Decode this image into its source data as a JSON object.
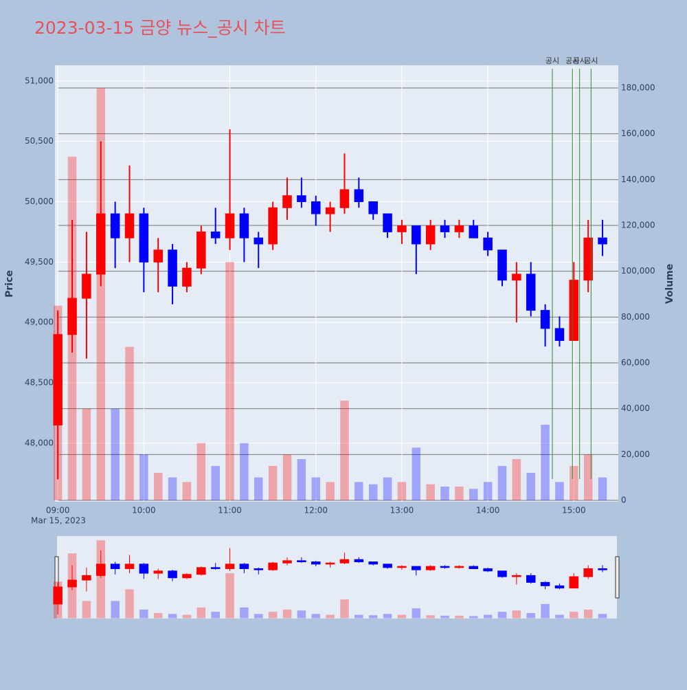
{
  "chart_data": {
    "type": "candlestick",
    "title": "2023-03-15 금양 뉴스_공시 차트",
    "y_label": "Price",
    "y2_label": "Volume",
    "x_date_label": "Mar 15, 2023",
    "x": [
      "09:00",
      "09:10",
      "09:20",
      "09:30",
      "09:40",
      "09:50",
      "10:00",
      "10:10",
      "10:20",
      "10:30",
      "10:40",
      "10:50",
      "11:00",
      "11:10",
      "11:20",
      "11:30",
      "11:40",
      "11:50",
      "12:00",
      "12:10",
      "12:20",
      "12:30",
      "12:40",
      "12:50",
      "13:00",
      "13:10",
      "13:20",
      "13:30",
      "13:40",
      "13:50",
      "14:00",
      "14:10",
      "14:20",
      "14:30",
      "14:40",
      "14:50",
      "15:00",
      "15:10",
      "15:20"
    ],
    "open": [
      48150,
      48900,
      49200,
      49400,
      49900,
      49700,
      49900,
      49500,
      49600,
      49300,
      49450,
      49750,
      49700,
      49900,
      49700,
      49650,
      49950,
      50050,
      50000,
      49900,
      49950,
      50100,
      50000,
      49900,
      49750,
      49800,
      49650,
      49800,
      49750,
      49800,
      49700,
      49600,
      49350,
      49400,
      49100,
      48950,
      48850,
      49350,
      49700
    ],
    "high": [
      49100,
      49850,
      49750,
      50500,
      50000,
      50300,
      49950,
      49700,
      49650,
      49500,
      49800,
      49950,
      50600,
      49950,
      49750,
      50000,
      50200,
      50200,
      50050,
      50000,
      50400,
      50200,
      50000,
      49900,
      49850,
      49800,
      49850,
      49850,
      49850,
      49850,
      49750,
      49600,
      49500,
      49500,
      49150,
      49050,
      49500,
      49850,
      49850
    ],
    "low": [
      47700,
      48750,
      48700,
      49300,
      49450,
      49500,
      49250,
      49250,
      49150,
      49250,
      49400,
      49650,
      49600,
      49500,
      49450,
      49600,
      49850,
      49950,
      49800,
      49750,
      49900,
      49950,
      49850,
      49700,
      49650,
      49400,
      49600,
      49700,
      49700,
      49700,
      49550,
      49300,
      49000,
      49050,
      48800,
      48800,
      48850,
      49250,
      49550
    ],
    "close": [
      48900,
      49200,
      49400,
      49900,
      49700,
      49900,
      49500,
      49600,
      49300,
      49450,
      49750,
      49700,
      49900,
      49700,
      49650,
      49950,
      50050,
      50000,
      49900,
      49950,
      50100,
      50000,
      49900,
      49750,
      49800,
      49650,
      49800,
      49750,
      49800,
      49700,
      49600,
      49350,
      49400,
      49100,
      48950,
      48850,
      49350,
      49700,
      49650
    ],
    "volume": [
      85000,
      150000,
      40000,
      180000,
      40000,
      67000,
      20000,
      12000,
      10000,
      8000,
      25000,
      15000,
      104000,
      25000,
      10000,
      15000,
      20000,
      18000,
      10000,
      8000,
      43500,
      8000,
      7000,
      10000,
      8000,
      23000,
      7000,
      6000,
      6000,
      5000,
      8000,
      15000,
      18000,
      12000,
      33000,
      8000,
      15000,
      20000,
      10000
    ],
    "increasing_color": "#ff0000",
    "decreasing_color": "#0000ff",
    "xlim": [
      "08:58",
      "15:31"
    ],
    "xticks": [
      "09:00",
      "10:00",
      "11:00",
      "12:00",
      "13:00",
      "14:00",
      "15:00"
    ],
    "ylim": [
      47515,
      51130
    ],
    "yticks": [
      {
        "value": 48000,
        "label": "48,000"
      },
      {
        "value": 48500,
        "label": "48,500"
      },
      {
        "value": 49000,
        "label": "49,000"
      },
      {
        "value": 49500,
        "label": "49,500"
      },
      {
        "value": 50000,
        "label": "50,000"
      },
      {
        "value": 50500,
        "label": "50,500"
      },
      {
        "value": 51000,
        "label": "51,000"
      }
    ],
    "y2lim": [
      -600,
      189900
    ],
    "y2ticks": [
      0,
      {
        "value": 20000,
        "label": "20,000"
      },
      {
        "value": 40000,
        "label": "40,000"
      },
      {
        "value": 60000,
        "label": "60,000"
      },
      {
        "value": 80000,
        "label": "80,000"
      },
      {
        "value": 100000,
        "label": "100,000"
      },
      {
        "value": 120000,
        "label": "120,000"
      },
      {
        "value": 140000,
        "label": "140,000"
      },
      {
        "value": 160000,
        "label": "160,000"
      },
      {
        "value": 180000,
        "label": "180,000"
      }
    ],
    "annotations": [
      {
        "x": "14:45",
        "text": "공시"
      },
      {
        "x": "14:59",
        "text": "공시"
      },
      {
        "x": "15:04",
        "text": "공시"
      },
      {
        "x": "15:12",
        "text": "공시"
      }
    ],
    "annotation_color": "#2e8b2e",
    "range_slider": true
  }
}
